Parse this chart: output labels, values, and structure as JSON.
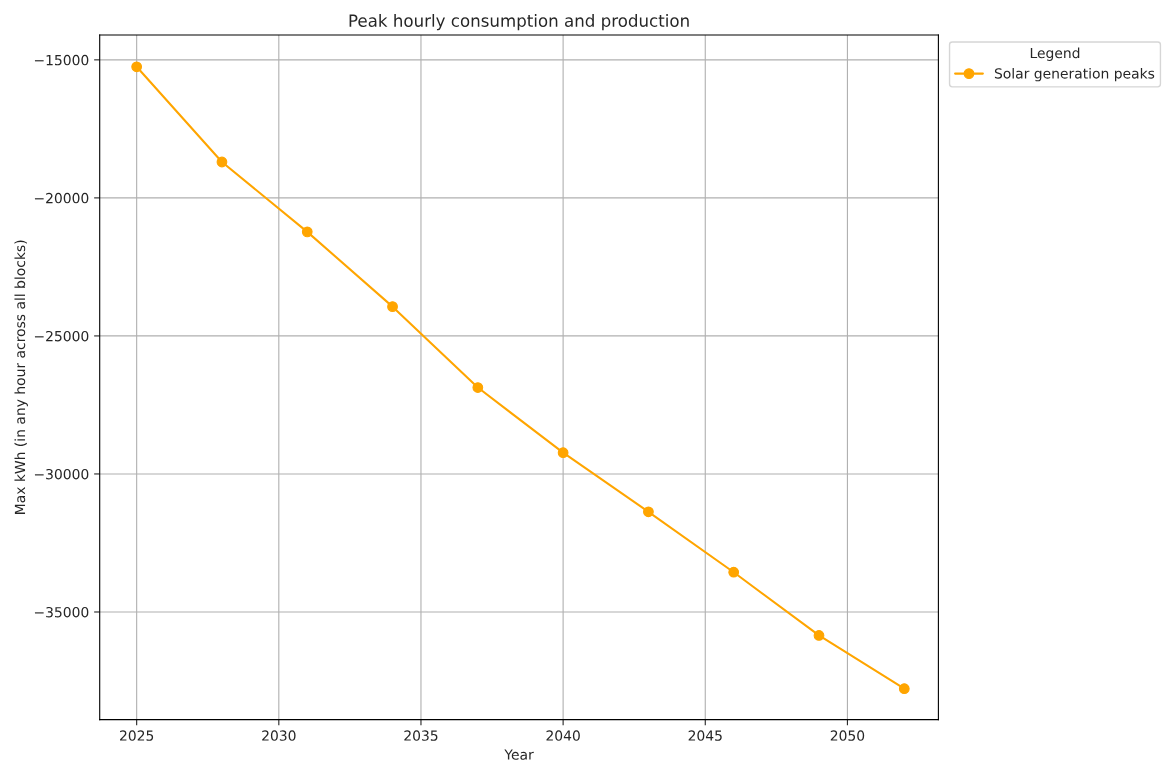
{
  "chart_data": {
    "type": "line",
    "title": "Peak hourly consumption and production",
    "xlabel": "Year",
    "ylabel": "Max kWh (in any hour across all blocks)",
    "legend_title": "Legend",
    "x": [
      2025,
      2028,
      2031,
      2034,
      2037,
      2040,
      2043,
      2046,
      2049,
      2052
    ],
    "series": [
      {
        "name": "Solar generation peaks",
        "color": "#ffa500",
        "values": [
          -15250,
          -18700,
          -21230,
          -23940,
          -26870,
          -29230,
          -31370,
          -33560,
          -35850,
          -37780
        ]
      }
    ],
    "xlim": [
      2023.7,
      2053.2
    ],
    "xticks": [
      2025,
      2030,
      2035,
      2040,
      2045,
      2050
    ],
    "ylim": [
      -38900,
      -14100
    ],
    "yticks": [
      -35000,
      -30000,
      -25000,
      -20000,
      -15000
    ],
    "grid": true,
    "legend": "top right",
    "marker": "circle",
    "line_style": "solid"
  }
}
